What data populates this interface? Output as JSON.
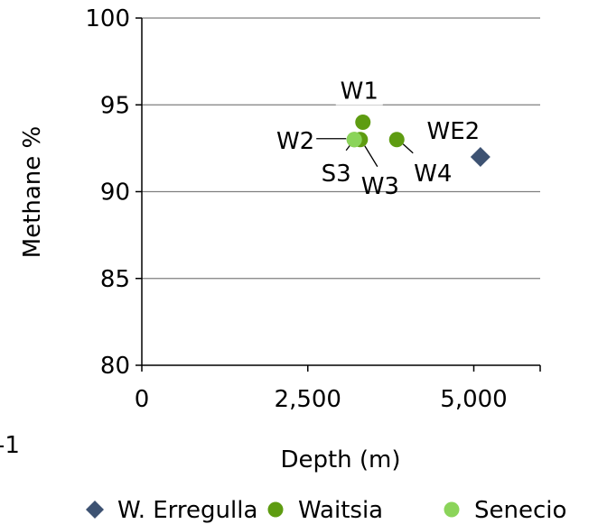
{
  "chart_data": {
    "type": "scatter",
    "title": "",
    "xlabel": "Depth (m)",
    "ylabel": "Methane %",
    "xlim": [
      0,
      6000
    ],
    "ylim": [
      80,
      100
    ],
    "x_ticks": [
      0,
      2500,
      5000
    ],
    "x_tick_labels": [
      "0",
      "2,500",
      "5,000"
    ],
    "y_ticks": [
      80,
      85,
      90,
      95,
      100
    ],
    "y_tick_labels": [
      "80",
      "85",
      "90",
      "95",
      "100"
    ],
    "grid": "horizontal",
    "legend_position": "bottom",
    "series": [
      {
        "name": "W. Erregulla",
        "marker": "diamond",
        "color": "#3D5272",
        "points": [
          {
            "label": "WE2",
            "x": 5100,
            "y": 92
          }
        ]
      },
      {
        "name": "Waitsia",
        "marker": "circle",
        "color": "#5E9C11",
        "points": [
          {
            "label": "W1",
            "x": 3330,
            "y": 94
          },
          {
            "label": "W2",
            "x": 3200,
            "y": 93
          },
          {
            "label": "W3",
            "x": 3290,
            "y": 93
          },
          {
            "label": "W4",
            "x": 3840,
            "y": 93
          }
        ]
      },
      {
        "name": "Senecio",
        "marker": "circle",
        "color": "#8BD45A",
        "points": [
          {
            "label": "S3",
            "x": 3200,
            "y": 93
          }
        ]
      }
    ]
  },
  "margin_text": "-1"
}
